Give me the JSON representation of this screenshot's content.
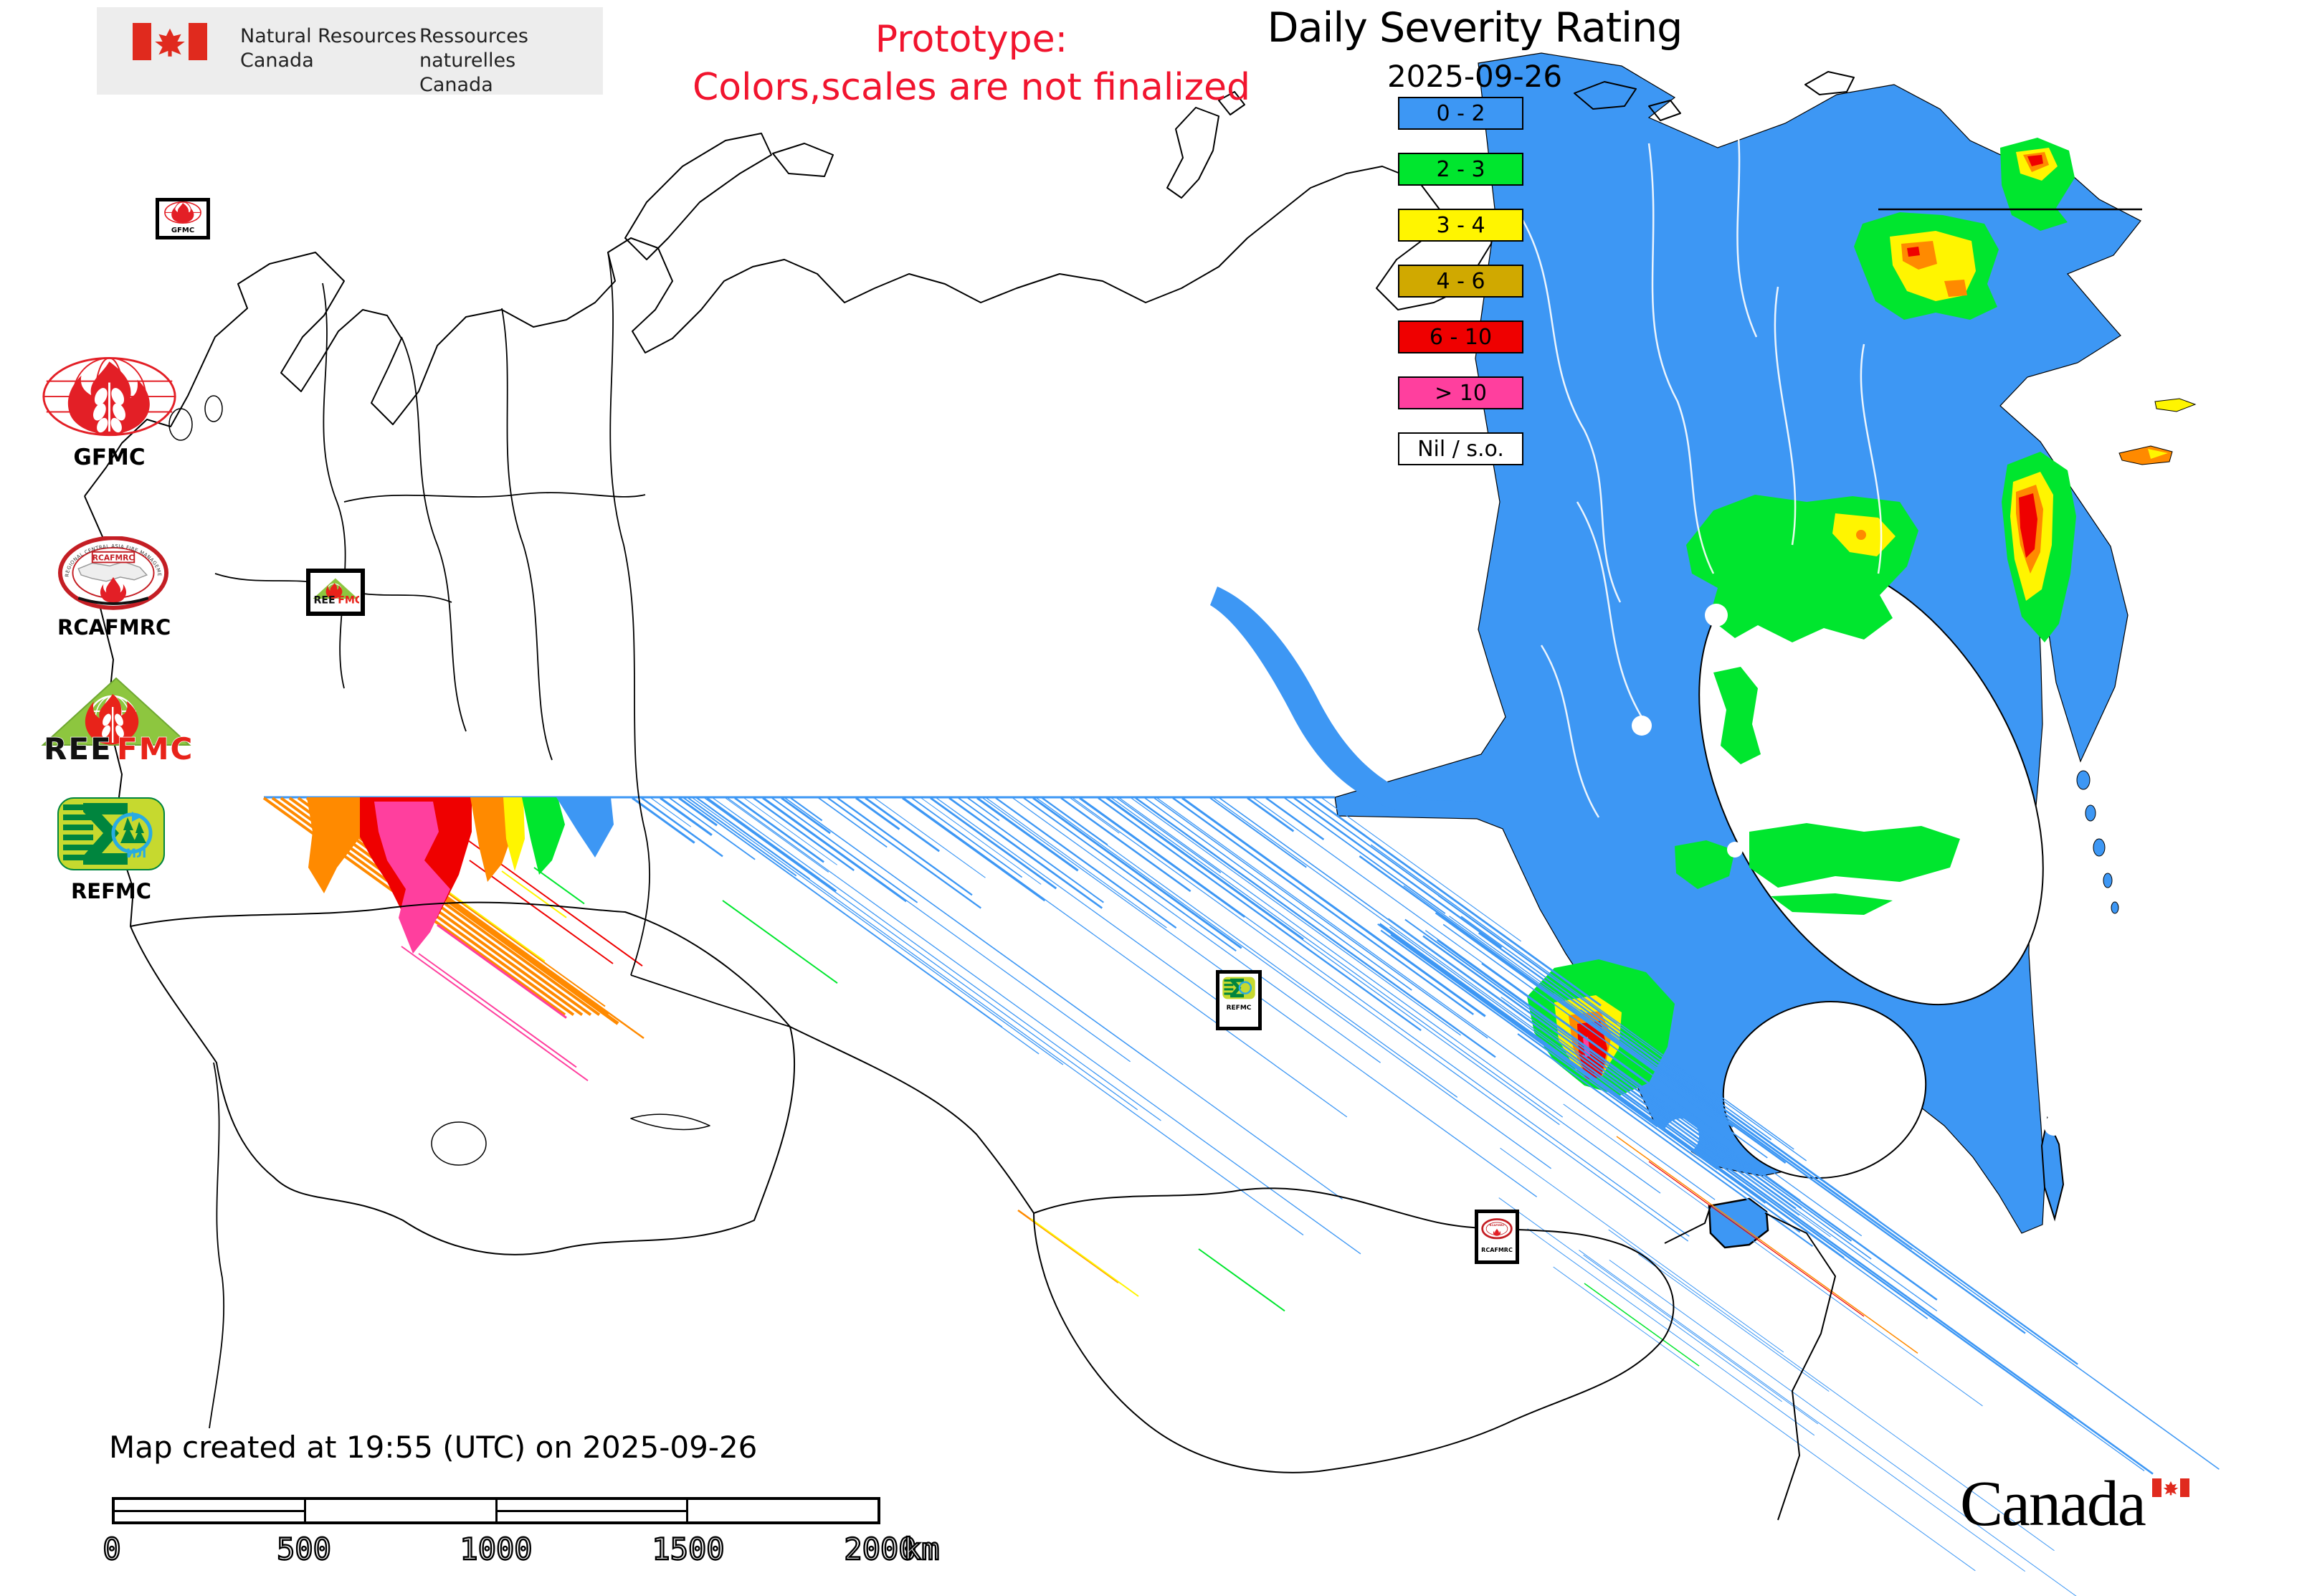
{
  "header": {
    "nrcan": {
      "en": [
        "Natural Resources",
        "Canada"
      ],
      "fr": [
        "Ressources naturelles",
        "Canada"
      ]
    },
    "prototype": [
      "Prototype:",
      "Colors,scales are not finalized"
    ],
    "title": "Daily Severity Rating",
    "date": "2025-09-26"
  },
  "legend": {
    "items": [
      {
        "label": "0 - 2",
        "color": "#3D97F4"
      },
      {
        "label": "2 - 3",
        "color": "#00E62E"
      },
      {
        "label": "3 - 4",
        "color": "#FFF500"
      },
      {
        "label": "4 - 6",
        "color": "#D0A900"
      },
      {
        "label": "6 - 10",
        "color": "#EF0000"
      },
      {
        "label": "> 10",
        "color": "#FF3F9E"
      },
      {
        "label": "Nil / s.o.",
        "color": "#FFFFFF"
      }
    ]
  },
  "side_logos": {
    "gfmc": {
      "label": "GFMC"
    },
    "rcafmrc": {
      "label": "RCAFMRC",
      "badge": "RCAFMRC",
      "ring_text": "REGIONAL CENTRAL ASIA FIRE MANAGEMENT RESOURCE CENTER"
    },
    "reefmc": {
      "label_black": "REE",
      "label_red": "FMC"
    },
    "refmc": {
      "label": "REFMC",
      "inner_text": "ИЛ"
    }
  },
  "map": {
    "markers": {
      "gfmc": {
        "label": "GFMC"
      },
      "refmc": {
        "label": "REFMC"
      },
      "rcafmrc": {
        "label": "RCAFMRC"
      }
    },
    "data_colors": {
      "blue": "#3D97F4",
      "green": "#00E62E",
      "yellow": "#FFF500",
      "gold": "#D0A900",
      "red": "#EF0000",
      "magenta": "#FF3F9E",
      "orange": "#FF8A00"
    }
  },
  "footer": {
    "created": "Map created at 19:55 (UTC) on 2025-09-26",
    "scalebar": {
      "ticks": [
        "0",
        "500",
        "1000",
        "1500",
        "2000"
      ],
      "unit": "km"
    },
    "wordmark": "Canada"
  }
}
